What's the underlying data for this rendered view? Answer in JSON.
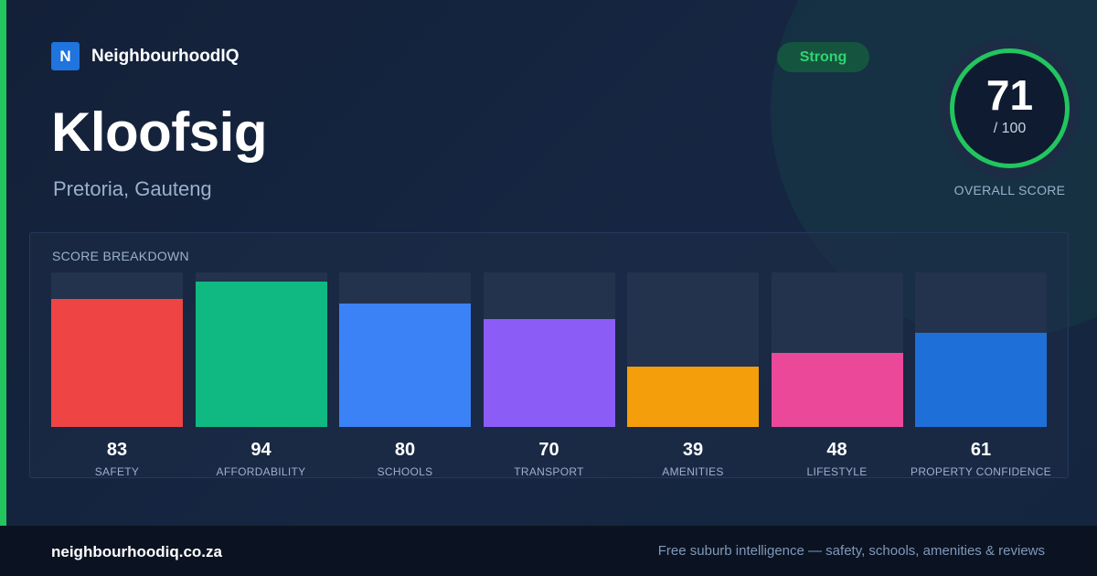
{
  "brand": {
    "logo_letter": "N",
    "name": "NeighbourhoodIQ"
  },
  "suburb": {
    "name": "Kloofsig",
    "location": "Pretoria, Gauteng"
  },
  "rating": {
    "badge": "Strong",
    "color": "#22c55e"
  },
  "overall": {
    "score": "71",
    "max": "/ 100",
    "label": "OVERALL SCORE",
    "fraction": 0.71
  },
  "breakdown": {
    "title": "SCORE BREAKDOWN",
    "max": 100,
    "items": [
      {
        "label": "SAFETY",
        "value": 83,
        "color": "#ef4444"
      },
      {
        "label": "AFFORDABILITY",
        "value": 94,
        "color": "#10b981"
      },
      {
        "label": "SCHOOLS",
        "value": 80,
        "color": "#3b82f6"
      },
      {
        "label": "TRANSPORT",
        "value": 70,
        "color": "#8b5cf6"
      },
      {
        "label": "AMENITIES",
        "value": 39,
        "color": "#f59e0b"
      },
      {
        "label": "LIFESTYLE",
        "value": 48,
        "color": "#ec4899"
      },
      {
        "label": "PROPERTY CONFIDENCE",
        "value": 61,
        "color": "#1f6fd9"
      }
    ]
  },
  "footer": {
    "domain": "neighbourhoodiq.co.za",
    "tagline": "Free suburb intelligence — safety, schools, amenities & reviews"
  }
}
